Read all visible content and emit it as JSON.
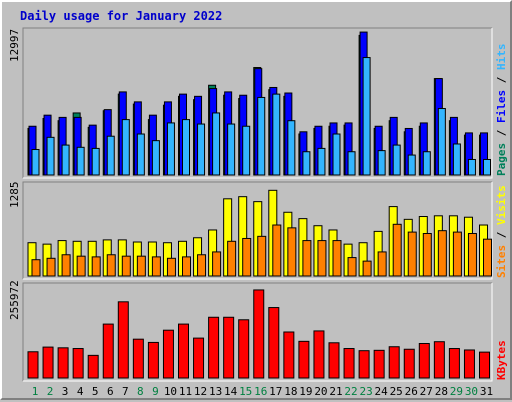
{
  "title": "Daily usage for January 2022",
  "colors": {
    "background": "#C0C0C0",
    "panel": "#C0C0C0",
    "title": "#0000CC",
    "weekday": "#000000",
    "weekend": "#008040",
    "pages": "#00805A",
    "files": "#0000FF",
    "hits": "#33B5FF",
    "visits": "#FFFF00",
    "sites": "#FF8000",
    "kbytes": "#FF0000",
    "separator": "#000000"
  },
  "chart_data": [
    {
      "type": "bar",
      "name_label": "Pages / Files / Hits",
      "legend": [
        {
          "text": "Pages",
          "color_key": "pages"
        },
        {
          "text": "Files",
          "color_key": "files"
        },
        {
          "text": "Hits",
          "color_key": "hits"
        }
      ],
      "ymax_label": "12997",
      "ylim": [
        0,
        12997
      ],
      "categories": [
        "1",
        "2",
        "3",
        "4",
        "5",
        "6",
        "7",
        "8",
        "9",
        "10",
        "11",
        "12",
        "13",
        "14",
        "15",
        "16",
        "17",
        "18",
        "19",
        "20",
        "21",
        "22",
        "23",
        "24",
        "25",
        "26",
        "27",
        "28",
        "29",
        "30",
        "31"
      ],
      "series": [
        {
          "name": "Pages",
          "color_key": "pages",
          "values": [
            4200,
            5100,
            4900,
            5600,
            4300,
            5800,
            7300,
            6400,
            5000,
            6300,
            7100,
            6800,
            8100,
            7200,
            6900,
            9700,
            7700,
            7100,
            3700,
            4200,
            4400,
            4500,
            12600,
            4200,
            4900,
            3900,
            4400,
            8700,
            4900,
            3600,
            3600
          ]
        },
        {
          "name": "Files",
          "color_key": "files",
          "values": [
            4400,
            5400,
            5200,
            5200,
            4500,
            5900,
            7500,
            6600,
            5400,
            6600,
            7300,
            7100,
            7800,
            7500,
            7200,
            9600,
            7900,
            7400,
            3900,
            4400,
            4700,
            4700,
            12900,
            4400,
            5200,
            4200,
            4700,
            8700,
            5200,
            3800,
            3800
          ]
        },
        {
          "name": "Hits",
          "color_key": "hits",
          "values": [
            2300,
            3400,
            2700,
            2500,
            2400,
            3500,
            5000,
            3700,
            3100,
            4700,
            5000,
            4600,
            5600,
            4600,
            4400,
            7000,
            7300,
            4900,
            2100,
            2400,
            3700,
            2100,
            10600,
            2200,
            2700,
            1800,
            2100,
            6000,
            2800,
            1400,
            1400
          ]
        }
      ]
    },
    {
      "type": "bar",
      "name_label": "Sites / Visits",
      "legend": [
        {
          "text": "Sites",
          "color_key": "sites"
        },
        {
          "text": "Visits",
          "color_key": "visits"
        }
      ],
      "ymax_label": "1285",
      "ylim": [
        0,
        1285
      ],
      "categories": [
        "1",
        "2",
        "3",
        "4",
        "5",
        "6",
        "7",
        "8",
        "9",
        "10",
        "11",
        "12",
        "13",
        "14",
        "15",
        "16",
        "17",
        "18",
        "19",
        "20",
        "21",
        "22",
        "23",
        "24",
        "25",
        "26",
        "27",
        "28",
        "29",
        "30",
        "31"
      ],
      "series": [
        {
          "name": "Visits",
          "color_key": "visits",
          "values": [
            470,
            450,
            500,
            490,
            490,
            510,
            510,
            480,
            480,
            470,
            490,
            540,
            650,
            1090,
            1120,
            1050,
            1210,
            900,
            810,
            710,
            650,
            450,
            470,
            630,
            980,
            800,
            840,
            850,
            850,
            830,
            720
          ]
        },
        {
          "name": "Sites",
          "color_key": "sites",
          "values": [
            230,
            250,
            300,
            280,
            270,
            300,
            280,
            280,
            270,
            250,
            270,
            300,
            340,
            490,
            530,
            560,
            720,
            680,
            500,
            500,
            500,
            260,
            210,
            340,
            730,
            620,
            600,
            640,
            620,
            600,
            520
          ]
        }
      ]
    },
    {
      "type": "bar",
      "name_label": "KBytes",
      "legend": [
        {
          "text": "KBytes",
          "color_key": "kbytes"
        }
      ],
      "ymax_label": "255972",
      "ylim": [
        0,
        255972
      ],
      "categories": [
        "1",
        "2",
        "3",
        "4",
        "5",
        "6",
        "7",
        "8",
        "9",
        "10",
        "11",
        "12",
        "13",
        "14",
        "15",
        "16",
        "17",
        "18",
        "19",
        "20",
        "21",
        "22",
        "23",
        "24",
        "25",
        "26",
        "27",
        "28",
        "29",
        "30",
        "31"
      ],
      "series": [
        {
          "name": "KBytes",
          "color_key": "kbytes",
          "values": [
            73000,
            86000,
            84000,
            82000,
            63000,
            150000,
            212000,
            108000,
            99000,
            133000,
            150000,
            111000,
            169000,
            169000,
            162000,
            245000,
            196000,
            128000,
            102000,
            131000,
            98000,
            82000,
            76000,
            77000,
            87000,
            80000,
            96000,
            101000,
            82000,
            78000,
            72000
          ]
        }
      ]
    }
  ],
  "weekend_days": [
    "1",
    "2",
    "8",
    "9",
    "15",
    "16",
    "22",
    "23",
    "29",
    "30"
  ]
}
